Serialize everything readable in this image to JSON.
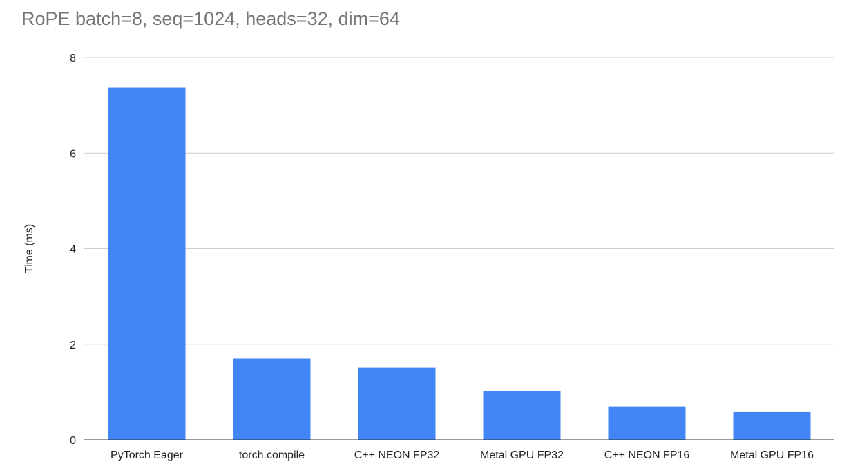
{
  "chart_data": {
    "type": "bar",
    "title": "RoPE batch=8, seq=1024, heads=32, dim=64",
    "xlabel": "",
    "ylabel": "Time (ms)",
    "ylim": [
      0,
      8
    ],
    "yticks": [
      "0",
      "2",
      "4",
      "6",
      "8"
    ],
    "categories": [
      "PyTorch Eager",
      "torch.compile",
      "C++ NEON FP32",
      "Metal GPU FP32",
      "C++ NEON FP16",
      "Metal GPU FP16"
    ],
    "values": [
      7.37,
      1.7,
      1.51,
      1.02,
      0.7,
      0.58
    ],
    "bar_color": "#4285f4",
    "grid": true,
    "legend": "none"
  }
}
